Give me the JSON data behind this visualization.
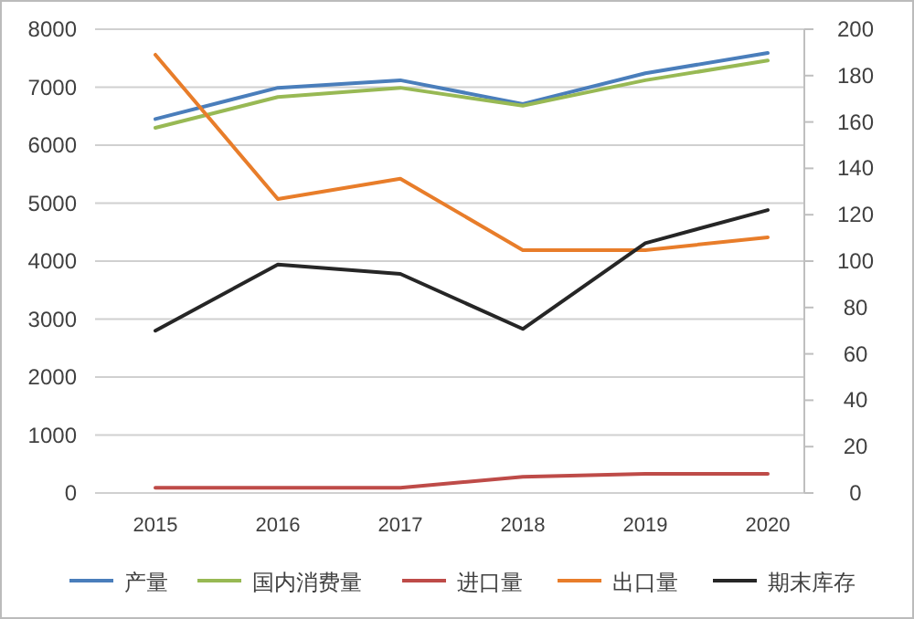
{
  "chart_data": {
    "type": "line",
    "categories": [
      "2015",
      "2016",
      "2017",
      "2018",
      "2019",
      "2020"
    ],
    "series": [
      {
        "name": "产量",
        "color": "#4a7ebb",
        "values": [
          6450,
          6990,
          7120,
          6710,
          7240,
          7590
        ]
      },
      {
        "name": "国内消费量",
        "color": "#98b954",
        "values": [
          6300,
          6830,
          6990,
          6680,
          7120,
          7460
        ]
      },
      {
        "name": "进口量",
        "color": "#be4b48",
        "values": [
          90,
          90,
          90,
          280,
          330,
          330
        ]
      },
      {
        "name": "出口量",
        "color": "#e87d2a",
        "values": [
          7560,
          5070,
          5420,
          4190,
          4190,
          4410
        ]
      },
      {
        "name": "期末库存",
        "color": "#262626",
        "values": [
          2800,
          3940,
          3780,
          2830,
          4310,
          4880
        ]
      }
    ],
    "ylim": [
      0,
      8000
    ],
    "yticks": [
      0,
      1000,
      2000,
      3000,
      4000,
      5000,
      6000,
      7000,
      8000
    ],
    "y2lim": [
      0,
      200
    ],
    "y2ticks": [
      0,
      20,
      40,
      60,
      80,
      100,
      120,
      140,
      160,
      180,
      200
    ],
    "grid": "y",
    "legend": "bottom",
    "marker": "none",
    "line_style": "solid"
  }
}
